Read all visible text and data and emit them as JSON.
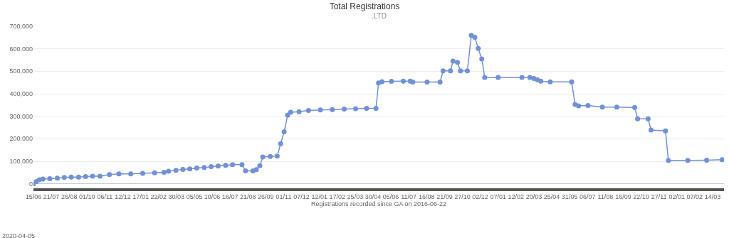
{
  "chart_data": {
    "type": "line",
    "title": "Total Registrations",
    "subtitle": ".LTD",
    "xlabel": "Registrations recorded since GA on 2016-06-22",
    "annotations": [
      "2020-04-05"
    ],
    "marker": "circle",
    "line_style": "solid",
    "grid": "y",
    "xlim": [
      "2016-06-15",
      "2020-04-06"
    ],
    "xticks": [
      {
        "value": "2016-06-15",
        "label": "15/06"
      },
      {
        "value": "2016-07-21",
        "label": "21/07"
      },
      {
        "value": "2016-08-26",
        "label": "26/08"
      },
      {
        "value": "2016-10-01",
        "label": "01/10"
      },
      {
        "value": "2016-11-06",
        "label": "06/11"
      },
      {
        "value": "2016-12-12",
        "label": "12/12"
      },
      {
        "value": "2017-01-17",
        "label": "17/01"
      },
      {
        "value": "2017-02-22",
        "label": "22/02"
      },
      {
        "value": "2017-03-30",
        "label": "30/03"
      },
      {
        "value": "2017-05-05",
        "label": "05/05"
      },
      {
        "value": "2017-06-10",
        "label": "10/06"
      },
      {
        "value": "2017-07-16",
        "label": "16/07"
      },
      {
        "value": "2017-08-21",
        "label": "21/08"
      },
      {
        "value": "2017-09-26",
        "label": "26/09"
      },
      {
        "value": "2017-11-01",
        "label": "01/11"
      },
      {
        "value": "2017-12-07",
        "label": "07/12"
      },
      {
        "value": "2018-01-12",
        "label": "12/01"
      },
      {
        "value": "2018-02-17",
        "label": "17/02"
      },
      {
        "value": "2018-03-25",
        "label": "25/03"
      },
      {
        "value": "2018-04-30",
        "label": "30/04"
      },
      {
        "value": "2018-06-05",
        "label": "05/06"
      },
      {
        "value": "2018-07-11",
        "label": "11/07"
      },
      {
        "value": "2018-08-16",
        "label": "16/08"
      },
      {
        "value": "2018-09-21",
        "label": "21/09"
      },
      {
        "value": "2018-10-27",
        "label": "27/10"
      },
      {
        "value": "2018-12-02",
        "label": "02/12"
      },
      {
        "value": "2019-01-07",
        "label": "07/01"
      },
      {
        "value": "2019-02-12",
        "label": "12/02"
      },
      {
        "value": "2019-03-20",
        "label": "20/03"
      },
      {
        "value": "2019-04-25",
        "label": "25/04"
      },
      {
        "value": "2019-05-31",
        "label": "31/05"
      },
      {
        "value": "2019-07-06",
        "label": "06/07"
      },
      {
        "value": "2019-08-11",
        "label": "11/08"
      },
      {
        "value": "2019-09-16",
        "label": "16/09"
      },
      {
        "value": "2019-10-22",
        "label": "22/10"
      },
      {
        "value": "2019-11-27",
        "label": "27/11"
      },
      {
        "value": "2020-01-02",
        "label": "02/01"
      },
      {
        "value": "2020-02-07",
        "label": "07/02"
      },
      {
        "value": "2020-03-14",
        "label": "14/03"
      }
    ],
    "ylim": [
      -20000,
      700000
    ],
    "yticks": [
      {
        "value": 0,
        "label": "0"
      },
      {
        "value": 100000,
        "label": "100,000"
      },
      {
        "value": 200000,
        "label": "200,000"
      },
      {
        "value": 300000,
        "label": "300,000"
      },
      {
        "value": 400000,
        "label": "400,000"
      },
      {
        "value": 500000,
        "label": "500,000"
      },
      {
        "value": 600000,
        "label": "600,000"
      },
      {
        "value": 700000,
        "label": "700,000"
      }
    ],
    "series": [
      {
        "color": "#7090d8",
        "x": [
          "2016-06-15",
          "2016-06-21",
          "2016-06-27",
          "2016-07-04",
          "2016-07-18",
          "2016-08-02",
          "2016-08-16",
          "2016-08-30",
          "2016-09-14",
          "2016-09-28",
          "2016-10-12",
          "2016-10-27",
          "2016-11-15",
          "2016-12-04",
          "2016-12-28",
          "2017-01-21",
          "2017-02-14",
          "2017-03-05",
          "2017-03-14",
          "2017-03-29",
          "2017-04-12",
          "2017-04-26",
          "2017-05-10",
          "2017-05-25",
          "2017-06-08",
          "2017-06-22",
          "2017-07-07",
          "2017-07-21",
          "2017-08-09",
          "2017-08-16",
          "2017-08-31",
          "2017-09-07",
          "2017-09-14",
          "2017-09-20",
          "2017-10-05",
          "2017-10-19",
          "2017-10-26",
          "2017-11-02",
          "2017-11-09",
          "2017-11-15",
          "2017-12-02",
          "2017-12-21",
          "2018-01-14",
          "2018-02-07",
          "2018-03-03",
          "2018-03-26",
          "2018-04-17",
          "2018-05-06",
          "2018-05-11",
          "2018-05-18",
          "2018-06-06",
          "2018-06-30",
          "2018-07-14",
          "2018-07-19",
          "2018-08-17",
          "2018-09-12",
          "2018-09-18",
          "2018-10-03",
          "2018-10-08",
          "2018-10-17",
          "2018-10-23",
          "2018-11-06",
          "2018-11-14",
          "2018-11-21",
          "2018-11-28",
          "2018-12-05",
          "2018-12-11",
          "2019-01-07",
          "2019-02-24",
          "2019-03-12",
          "2019-03-20",
          "2019-03-27",
          "2019-04-03",
          "2019-04-22",
          "2019-06-04",
          "2019-06-11",
          "2019-06-18",
          "2019-07-07",
          "2019-08-05",
          "2019-09-03",
          "2019-10-09",
          "2019-10-15",
          "2019-11-05",
          "2019-11-11",
          "2019-12-10",
          "2019-12-16",
          "2020-01-24",
          "2020-03-02",
          "2020-04-02"
        ],
        "values": [
          0,
          10000,
          18000,
          21000,
          23000,
          25000,
          28000,
          30000,
          30000,
          32000,
          34000,
          34000,
          41000,
          44000,
          44000,
          46000,
          49000,
          51000,
          56000,
          60000,
          64000,
          66000,
          70000,
          72000,
          76000,
          79000,
          82000,
          85000,
          85000,
          57000,
          57000,
          63000,
          80000,
          119000,
          121000,
          123000,
          178000,
          231000,
          305000,
          318000,
          320000,
          326000,
          328000,
          330000,
          332000,
          334000,
          335000,
          335000,
          448000,
          454000,
          455000,
          456000,
          456000,
          452000,
          452000,
          452000,
          502000,
          502000,
          545000,
          540000,
          502000,
          502000,
          660000,
          651000,
          601000,
          555000,
          473000,
          473000,
          473000,
          473000,
          468000,
          462000,
          456000,
          453000,
          453000,
          353000,
          346000,
          348000,
          341000,
          341000,
          339000,
          289000,
          289000,
          239000,
          235000,
          104000,
          104000,
          105000,
          107000
        ]
      }
    ]
  }
}
